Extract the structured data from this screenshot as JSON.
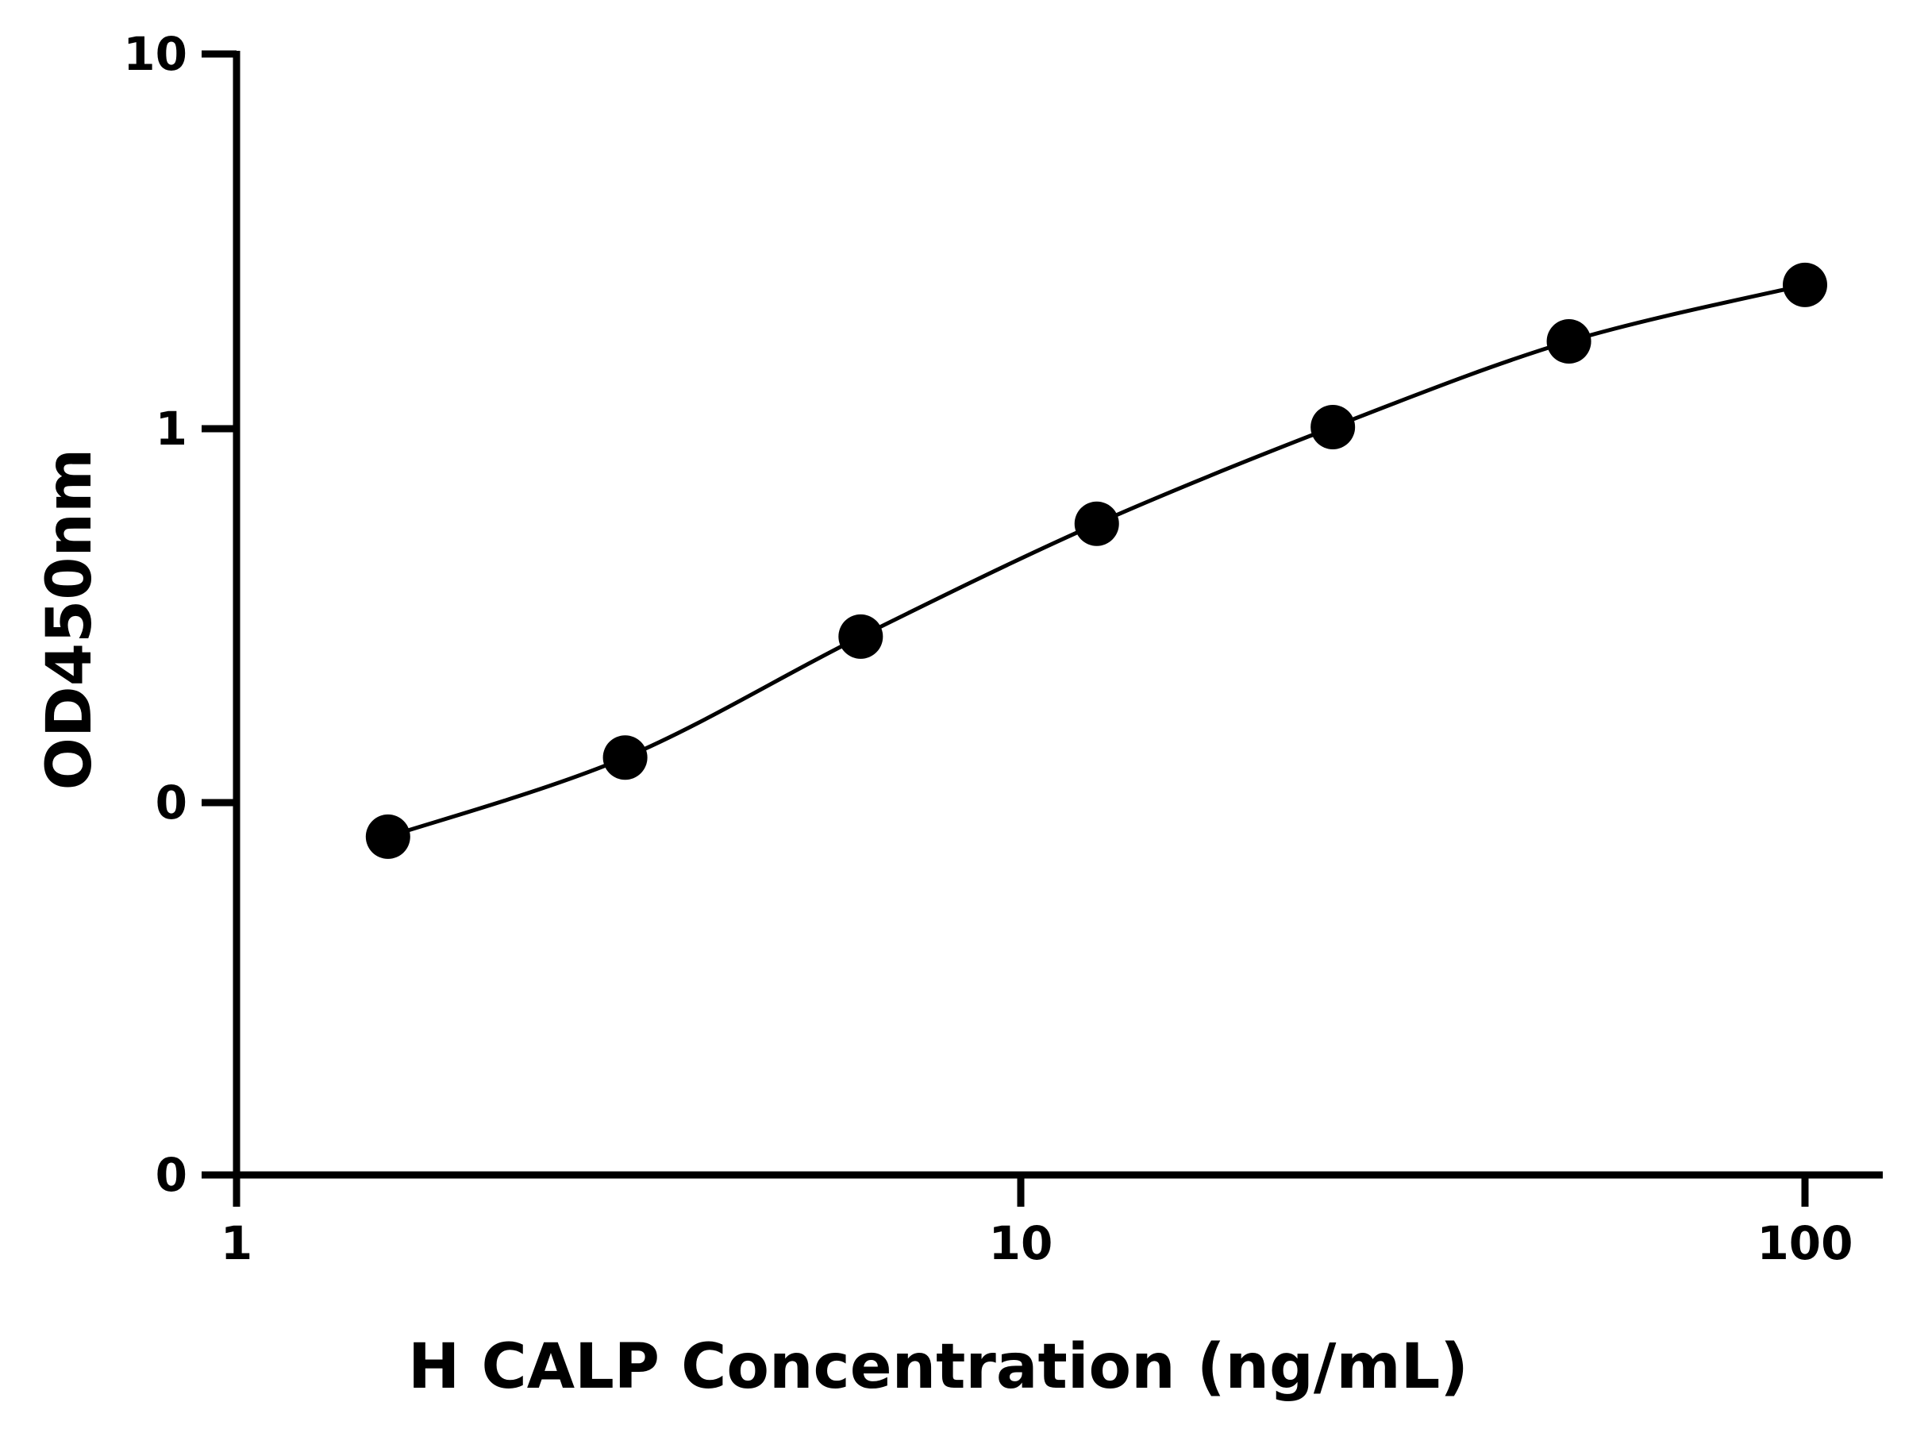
{
  "chart_data": {
    "type": "scatter",
    "xlabel": "H CALP Concentration (ng/mL)",
    "ylabel": "OD450nm",
    "x_scale": "log",
    "xlim": [
      1,
      120
    ],
    "x_ticks": [
      1,
      10,
      100
    ],
    "x_tick_labels": [
      "1",
      "10",
      "100"
    ],
    "y_ticks": [
      0.01,
      0.1,
      1,
      10
    ],
    "y_tick_labels": [
      "0",
      "0",
      "1",
      "10"
    ],
    "grid": false,
    "legend": "none",
    "series": [
      {
        "x": [
          1.56,
          3.13,
          6.25,
          12.5,
          25,
          50,
          100
        ],
        "y": [
          0.081,
          0.132,
          0.278,
          0.557,
          1.01,
          1.71,
          2.42
        ]
      }
    ],
    "curve": "fitted smooth curve through points",
    "colors": {
      "points": "#000000",
      "axes": "#000000",
      "curve": "#000000"
    }
  }
}
